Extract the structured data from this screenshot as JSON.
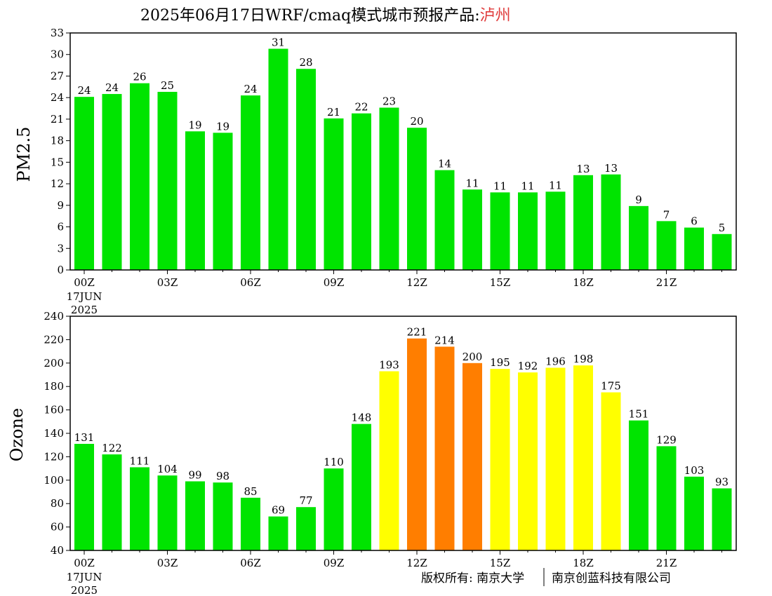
{
  "title": {
    "main": "2025年06月17日WRF/cmaq模式城市预报产品:",
    "city": "泸州",
    "city_color": "#e03c3c"
  },
  "copyright": {
    "left": "版权所有: 南京大学",
    "right": "南京创蓝科技有限公司"
  },
  "chart_data": [
    {
      "type": "bar",
      "name": "pm25",
      "ylabel": "PM2.5",
      "ylim": [
        0,
        33
      ],
      "yticks": [
        0,
        3,
        6,
        9,
        12,
        15,
        18,
        21,
        24,
        27,
        30,
        33
      ],
      "x_tick_labels": [
        "00Z",
        "03Z",
        "06Z",
        "09Z",
        "12Z",
        "15Z",
        "18Z",
        "21Z"
      ],
      "x_tick_hours": [
        0,
        3,
        6,
        9,
        12,
        15,
        18,
        21
      ],
      "date_label": [
        "17JUN",
        "2025"
      ],
      "hours": [
        0,
        1,
        2,
        3,
        4,
        5,
        6,
        7,
        8,
        9,
        10,
        11,
        12,
        13,
        14,
        15,
        16,
        17,
        18,
        19,
        20,
        21,
        22,
        23
      ],
      "values": [
        24.1,
        24.5,
        26.0,
        24.8,
        19.3,
        19.1,
        24.3,
        30.8,
        28.0,
        21.1,
        21.8,
        22.6,
        19.8,
        13.9,
        11.2,
        10.8,
        10.8,
        10.9,
        13.2,
        13.3,
        8.9,
        6.8,
        5.9,
        5.0
      ],
      "labels": [
        "24",
        "24",
        "26",
        "25",
        "19",
        "19",
        "24",
        "31",
        "28",
        "21",
        "22",
        "23",
        "20",
        "14",
        "11",
        "11",
        "11",
        "11",
        "13",
        "13",
        "9",
        "7",
        "6",
        "5"
      ],
      "colors": [
        "#00e400",
        "#00e400",
        "#00e400",
        "#00e400",
        "#00e400",
        "#00e400",
        "#00e400",
        "#00e400",
        "#00e400",
        "#00e400",
        "#00e400",
        "#00e400",
        "#00e400",
        "#00e400",
        "#00e400",
        "#00e400",
        "#00e400",
        "#00e400",
        "#00e400",
        "#00e400",
        "#00e400",
        "#00e400",
        "#00e400",
        "#00e400"
      ]
    },
    {
      "type": "bar",
      "name": "ozone",
      "ylabel": "Ozone",
      "ylim": [
        40,
        240
      ],
      "yticks": [
        40,
        60,
        80,
        100,
        120,
        140,
        160,
        180,
        200,
        220,
        240
      ],
      "x_tick_labels": [
        "00Z",
        "03Z",
        "06Z",
        "09Z",
        "12Z",
        "15Z",
        "18Z",
        "21Z"
      ],
      "x_tick_hours": [
        0,
        3,
        6,
        9,
        12,
        15,
        18,
        21
      ],
      "date_label": [
        "17JUN",
        "2025"
      ],
      "hours": [
        0,
        1,
        2,
        3,
        4,
        5,
        6,
        7,
        8,
        9,
        10,
        11,
        12,
        13,
        14,
        15,
        16,
        17,
        18,
        19,
        20,
        21,
        22,
        23
      ],
      "values": [
        131,
        122,
        111,
        104,
        99,
        98,
        85,
        69,
        77,
        110,
        148,
        193,
        221,
        214,
        200,
        195,
        192,
        196,
        198,
        175,
        151,
        129,
        103,
        93
      ],
      "labels": [
        "131",
        "122",
        "111",
        "104",
        "99",
        "98",
        "85",
        "69",
        "77",
        "110",
        "148",
        "193",
        "221",
        "214",
        "200",
        "195",
        "192",
        "196",
        "198",
        "175",
        "151",
        "129",
        "103",
        "93"
      ],
      "colors": [
        "#00e400",
        "#00e400",
        "#00e400",
        "#00e400",
        "#00e400",
        "#00e400",
        "#00e400",
        "#00e400",
        "#00e400",
        "#00e400",
        "#00e400",
        "#ffff00",
        "#ff7e00",
        "#ff7e00",
        "#ff7e00",
        "#ffff00",
        "#ffff00",
        "#ffff00",
        "#ffff00",
        "#ffff00",
        "#00e400",
        "#00e400",
        "#00e400",
        "#00e400"
      ]
    }
  ]
}
